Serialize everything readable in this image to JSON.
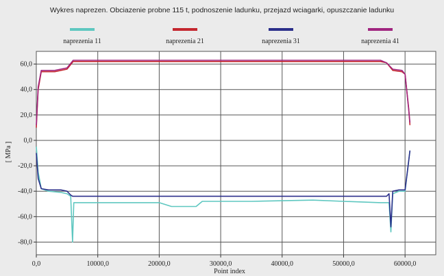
{
  "chart_data": {
    "type": "line",
    "title": "Wykres naprezen. Obciazenie probne 115 t, podnoszenie ladunku, przejazd wciagarki, opuszczanie ladunku",
    "xlabel": "Point index",
    "ylabel": "[ MPa ]",
    "xlim": [
      0,
      65000
    ],
    "ylim": [
      -90,
      70
    ],
    "x_ticks": [
      0,
      10000,
      20000,
      30000,
      40000,
      50000,
      60000
    ],
    "x_tick_labels": [
      "0,0",
      "10000,0",
      "20000,0",
      "30000,0",
      "40000,0",
      "50000,0",
      "60000,0"
    ],
    "y_ticks": [
      60,
      40,
      20,
      0,
      -20,
      -40,
      -60,
      -80
    ],
    "y_tick_labels": [
      "60,0",
      "40,0",
      "20,0",
      "0,0",
      "-20,0",
      "-40,0",
      "-60,0",
      "-80,0"
    ],
    "grid": true,
    "legend_position": "top",
    "series": [
      {
        "name": "naprezenia 11",
        "color": "#5ec7c0",
        "points": [
          [
            0,
            -5
          ],
          [
            300,
            -25
          ],
          [
            800,
            -38
          ],
          [
            2000,
            -40
          ],
          [
            4000,
            -41
          ],
          [
            5000,
            -42
          ],
          [
            5600,
            -44
          ],
          [
            5900,
            -80
          ],
          [
            6100,
            -49
          ],
          [
            10000,
            -49
          ],
          [
            20000,
            -49
          ],
          [
            22000,
            -52
          ],
          [
            26000,
            -52
          ],
          [
            27000,
            -48
          ],
          [
            35000,
            -48
          ],
          [
            45000,
            -47
          ],
          [
            50000,
            -48
          ],
          [
            56000,
            -49
          ],
          [
            57400,
            -49
          ],
          [
            57700,
            -72
          ],
          [
            58000,
            -42
          ],
          [
            59000,
            -40
          ],
          [
            60000,
            -40
          ],
          [
            60500,
            -20
          ],
          [
            60800,
            -8
          ]
        ]
      },
      {
        "name": "naprezenia 21",
        "color": "#c4272f",
        "points": [
          [
            0,
            10
          ],
          [
            300,
            40
          ],
          [
            800,
            54
          ],
          [
            3000,
            54
          ],
          [
            5000,
            56
          ],
          [
            6000,
            62
          ],
          [
            15000,
            62
          ],
          [
            30000,
            62
          ],
          [
            45000,
            62
          ],
          [
            56000,
            62
          ],
          [
            57000,
            61
          ],
          [
            58000,
            55
          ],
          [
            59500,
            54
          ],
          [
            60000,
            52
          ],
          [
            60600,
            25
          ],
          [
            60800,
            12
          ]
        ]
      },
      {
        "name": "naprezenia 31",
        "color": "#2b2f8a",
        "points": [
          [
            0,
            -10
          ],
          [
            300,
            -30
          ],
          [
            800,
            -38
          ],
          [
            2000,
            -39
          ],
          [
            4000,
            -39
          ],
          [
            5000,
            -40
          ],
          [
            5600,
            -43
          ],
          [
            5900,
            -44
          ],
          [
            15000,
            -44
          ],
          [
            30000,
            -44
          ],
          [
            45000,
            -44
          ],
          [
            57000,
            -44
          ],
          [
            57400,
            -42
          ],
          [
            57700,
            -68
          ],
          [
            58000,
            -40
          ],
          [
            59000,
            -39
          ],
          [
            60000,
            -39
          ],
          [
            60500,
            -20
          ],
          [
            60800,
            -8
          ]
        ]
      },
      {
        "name": "naprezenia 41",
        "color": "#a0257f",
        "points": [
          [
            0,
            12
          ],
          [
            300,
            42
          ],
          [
            800,
            55
          ],
          [
            3000,
            55
          ],
          [
            5000,
            57
          ],
          [
            6000,
            63
          ],
          [
            15000,
            63
          ],
          [
            30000,
            63
          ],
          [
            45000,
            63
          ],
          [
            56000,
            63
          ],
          [
            57000,
            61
          ],
          [
            58000,
            56
          ],
          [
            59500,
            55
          ],
          [
            60000,
            52
          ],
          [
            60600,
            24
          ],
          [
            60800,
            14
          ]
        ]
      }
    ]
  }
}
